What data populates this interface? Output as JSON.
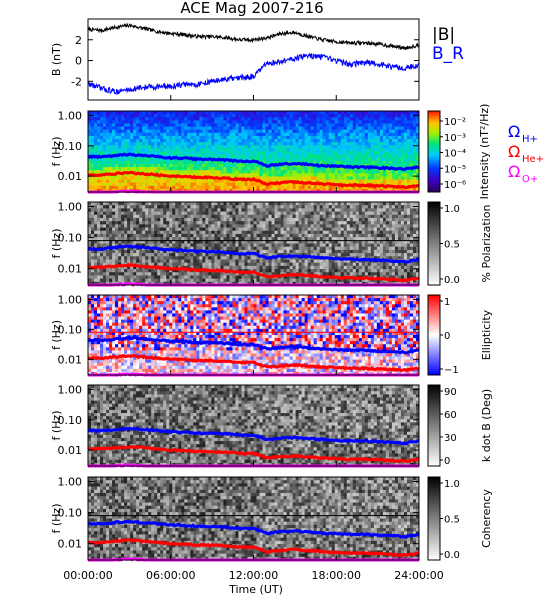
{
  "chart_data": {
    "type": "spectrogram",
    "title": "ACE Mag 2007-216",
    "xlabel": "Time (UT)",
    "x_ticks": [
      "00:00:00",
      "06:00:00",
      "12:00:00",
      "18:00:00",
      "24:00:00"
    ],
    "x_range_hours": [
      0,
      24
    ],
    "panels": [
      {
        "kind": "line",
        "ylabel": "B (nT)",
        "ylim": [
          -3.8,
          4.0
        ],
        "y_ticks": [
          -2,
          0,
          2
        ],
        "legend": [
          {
            "label": "|B|",
            "color": "#000000"
          },
          {
            "label": "B_R",
            "color": "#0000ff"
          }
        ],
        "series": [
          {
            "name": "|B|",
            "color": "#000000",
            "x": [
              0,
              1,
              2,
              3,
              4,
              5,
              6,
              7,
              8,
              9,
              10,
              11,
              12,
              13,
              14,
              15,
              16,
              17,
              18,
              19,
              20,
              21,
              22,
              23,
              24
            ],
            "y": [
              3.0,
              2.9,
              3.2,
              3.4,
              3.1,
              2.8,
              2.6,
              2.5,
              2.3,
              2.3,
              2.2,
              2.0,
              2.0,
              2.2,
              2.6,
              2.7,
              2.3,
              2.0,
              1.8,
              1.7,
              1.7,
              1.6,
              1.4,
              1.2,
              1.5
            ]
          },
          {
            "name": "B_R",
            "color": "#0000ff",
            "x": [
              0,
              1,
              2,
              3,
              4,
              5,
              6,
              7,
              8,
              9,
              10,
              11,
              12,
              13,
              14,
              15,
              16,
              17,
              18,
              19,
              20,
              21,
              22,
              23,
              24
            ],
            "y": [
              -2.2,
              -2.7,
              -3.0,
              -2.8,
              -2.6,
              -2.5,
              -2.5,
              -2.3,
              -2.3,
              -2.0,
              -1.8,
              -1.7,
              -1.5,
              -0.3,
              -0.1,
              0.2,
              0.5,
              0.3,
              0.0,
              -0.4,
              -0.2,
              -0.3,
              -0.6,
              -0.7,
              -0.5
            ]
          }
        ]
      },
      {
        "kind": "spectrogram",
        "ylabel": "f (Hz)",
        "y_scale": "log",
        "ylim": [
          0.003,
          1.4
        ],
        "y_ticks": [
          "1.00",
          "0.10",
          "0.01"
        ],
        "colorbar": {
          "label": "Intensity (nT²/Hz)",
          "scale": "log",
          "ticks": [
            "10⁻²",
            "10⁻³",
            "10⁻⁴",
            "10⁻⁵",
            "10⁻⁶"
          ],
          "palette": "rainbow"
        },
        "legend": [
          {
            "label": "Ω",
            "sub": "H+",
            "color": "#0000ff"
          },
          {
            "label": "Ω",
            "sub": "He+",
            "color": "#ff0000"
          },
          {
            "label": "Ω",
            "sub": "O+",
            "color": "#ff00ff"
          }
        ]
      },
      {
        "kind": "spectrogram",
        "ylabel": "f (Hz)",
        "y_scale": "log",
        "ylim": [
          0.003,
          1.4
        ],
        "y_ticks": [
          "1.00",
          "0.10",
          "0.01"
        ],
        "colorbar": {
          "label": "% Polarization",
          "scale": "linear",
          "ticks": [
            "1.0",
            "0.5",
            "0.0"
          ],
          "palette": "gray"
        }
      },
      {
        "kind": "spectrogram",
        "ylabel": "f (Hz)",
        "y_scale": "log",
        "ylim": [
          0.003,
          1.4
        ],
        "y_ticks": [
          "1.00",
          "0.10",
          "0.01"
        ],
        "colorbar": {
          "label": "Ellipticity",
          "scale": "linear",
          "ticks": [
            "1",
            "0",
            "−1"
          ],
          "palette": "bwr"
        }
      },
      {
        "kind": "spectrogram",
        "ylabel": "f (Hz)",
        "y_scale": "log",
        "ylim": [
          0.003,
          1.4
        ],
        "y_ticks": [
          "1.00",
          "0.10",
          "0.01"
        ],
        "colorbar": {
          "label": "k dot B (Deg)",
          "scale": "linear",
          "ticks": [
            "90",
            "60",
            "30",
            "0"
          ],
          "palette": "gray"
        }
      },
      {
        "kind": "spectrogram",
        "ylabel": "f (Hz)",
        "y_scale": "log",
        "ylim": [
          0.003,
          1.4
        ],
        "y_ticks": [
          "1.00",
          "0.10",
          "0.01"
        ],
        "colorbar": {
          "label": "Coherency",
          "scale": "linear",
          "ticks": [
            "1.0",
            "0.5",
            "0.0"
          ],
          "palette": "gray"
        }
      }
    ],
    "overlay_lines": {
      "H+": {
        "color": "#0000ff",
        "x": [
          0,
          1,
          2,
          3,
          4,
          5,
          6,
          7,
          8,
          9,
          10,
          11,
          12,
          13,
          14,
          15,
          16,
          17,
          18,
          19,
          20,
          21,
          22,
          23,
          24
        ],
        "y": [
          0.045,
          0.043,
          0.048,
          0.052,
          0.048,
          0.044,
          0.04,
          0.039,
          0.036,
          0.036,
          0.034,
          0.031,
          0.031,
          0.022,
          0.025,
          0.026,
          0.024,
          0.022,
          0.021,
          0.02,
          0.02,
          0.019,
          0.018,
          0.017,
          0.02
        ]
      },
      "He+": {
        "color": "#ff0000",
        "x": [
          0,
          1,
          2,
          3,
          4,
          5,
          6,
          7,
          8,
          9,
          10,
          11,
          12,
          13,
          14,
          15,
          16,
          17,
          18,
          19,
          20,
          21,
          22,
          23,
          24
        ],
        "y": [
          0.011,
          0.011,
          0.012,
          0.013,
          0.012,
          0.011,
          0.01,
          0.0098,
          0.009,
          0.009,
          0.0085,
          0.0078,
          0.0078,
          0.0055,
          0.006,
          0.0065,
          0.006,
          0.0055,
          0.0052,
          0.005,
          0.005,
          0.0048,
          0.0045,
          0.0043,
          0.005
        ]
      },
      "O+": {
        "color": "#ff00ff",
        "x": [
          0,
          1,
          2,
          3,
          4,
          5,
          6,
          7,
          8,
          9,
          10,
          11,
          12,
          13,
          14,
          15,
          16,
          17,
          18,
          19,
          20,
          21,
          22,
          23,
          24
        ],
        "y": [
          0.0028,
          0.0027,
          0.003,
          0.0032,
          0.003,
          0.0028,
          0.0025,
          0.0024,
          0.0023,
          0.0023,
          0.0021,
          0.002,
          0.002,
          0.0014,
          0.0015,
          0.0016,
          0.0015,
          0.0014,
          0.0013,
          0.0012,
          0.0012,
          0.0012,
          0.0011,
          0.0011,
          0.0012
        ]
      }
    },
    "reference_line_hz": 0.08
  }
}
